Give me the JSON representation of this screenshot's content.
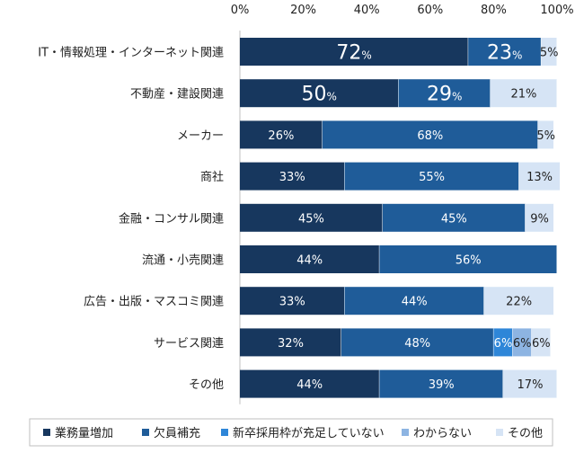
{
  "chart_data": {
    "type": "bar",
    "orientation": "horizontal",
    "stacked": true,
    "title": "",
    "xlabel": "",
    "ylabel": "",
    "xlim": [
      0,
      100
    ],
    "x_tick_labels": [
      "0%",
      "20%",
      "40%",
      "60%",
      "80%",
      "100%"
    ],
    "x_tick_values": [
      0,
      20,
      40,
      60,
      80,
      100
    ],
    "grid": false,
    "legend_position": "bottom",
    "categories": [
      "IT・情報処理・インターネット関連",
      "不動産・建設関連",
      "メーカー",
      "商社",
      "金融・コンサル関連",
      "流通・小売関連",
      "広告・出版・マスコミ関連",
      "サービス関連",
      "その他"
    ],
    "series": [
      {
        "name": "業務量増加",
        "color": "#17375e",
        "values": [
          72,
          50,
          26,
          33,
          45,
          44,
          33,
          32,
          44
        ]
      },
      {
        "name": "欠員補充",
        "color": "#1f5c99",
        "values": [
          23,
          29,
          68,
          55,
          45,
          56,
          44,
          48,
          39
        ]
      },
      {
        "name": "新卒採用枠が充足していない",
        "color": "#2e86d8",
        "values": [
          0,
          0,
          0,
          0,
          0,
          0,
          0,
          6,
          0
        ]
      },
      {
        "name": "わからない",
        "color": "#8db4e2",
        "values": [
          0,
          0,
          0,
          0,
          0,
          0,
          0,
          6,
          0
        ]
      },
      {
        "name": "その他",
        "color": "#d6e4f5",
        "values": [
          5,
          21,
          5,
          13,
          9,
          0,
          22,
          6,
          17
        ]
      }
    ],
    "data_labels": [
      [
        "72%",
        "23%",
        "",
        "",
        "5%"
      ],
      [
        "50%",
        "29%",
        "",
        "",
        "21%"
      ],
      [
        "26%",
        "68%",
        "",
        "",
        "5%"
      ],
      [
        "33%",
        "55%",
        "",
        "",
        "13%"
      ],
      [
        "45%",
        "45%",
        "",
        "",
        "9%"
      ],
      [
        "44%",
        "56%",
        "",
        "",
        ""
      ],
      [
        "33%",
        "44%",
        "",
        "",
        "22%"
      ],
      [
        "32%",
        "48%",
        "6%",
        "6%",
        "6%"
      ],
      [
        "44%",
        "39%",
        "",
        "",
        "17%"
      ]
    ],
    "emphasized_rows": [
      0,
      1
    ]
  }
}
